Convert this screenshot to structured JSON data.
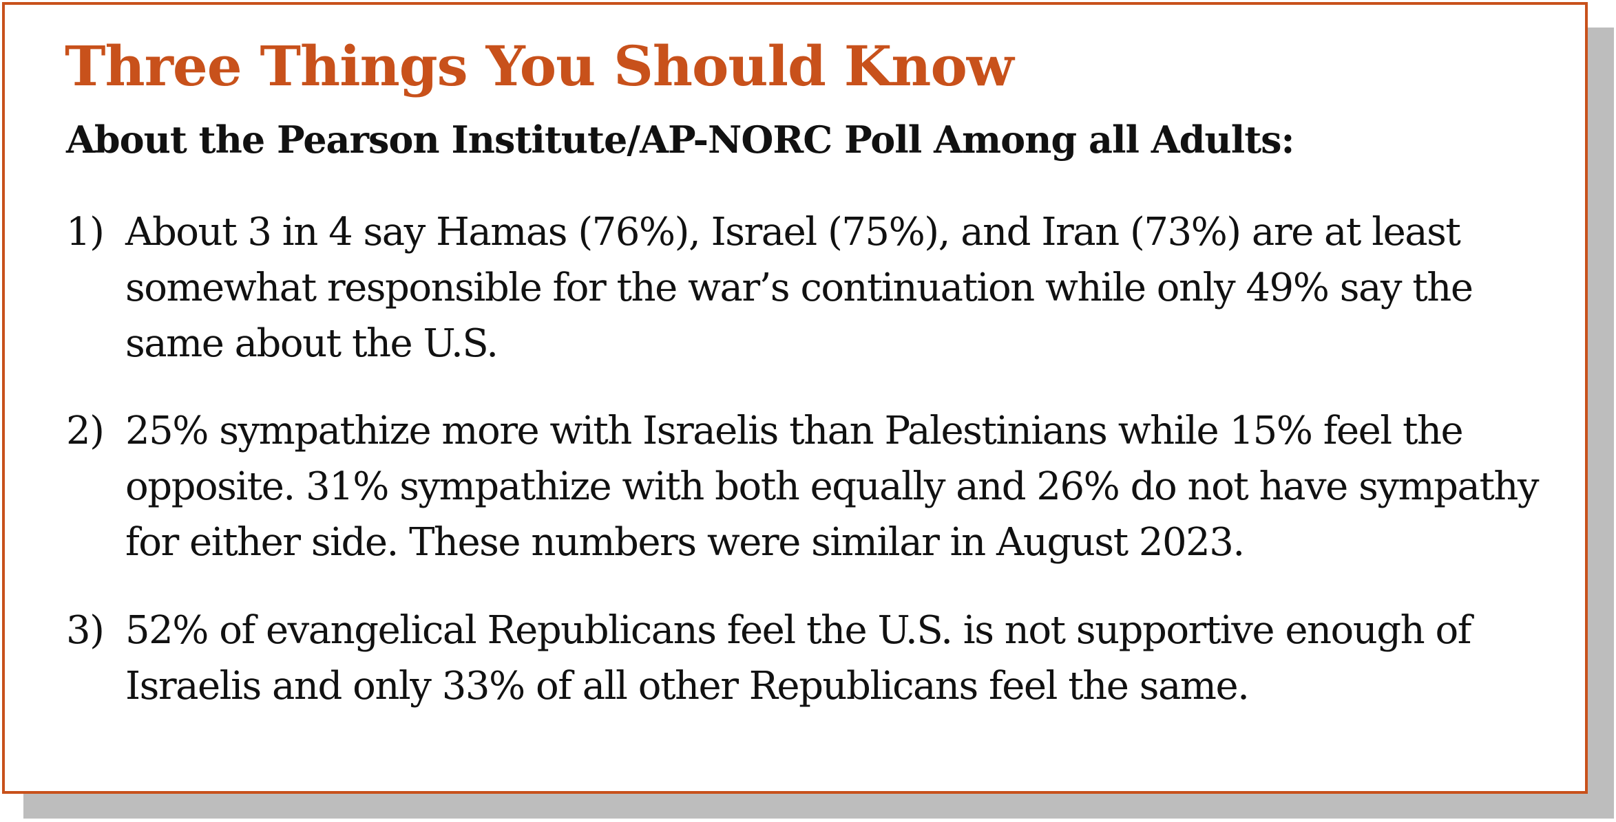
{
  "heading": {
    "title": "Three Things You Should Know",
    "subtitle": "About the Pearson Institute/AP-NORC Poll Among all Adults:"
  },
  "items": [
    {
      "number": "1)",
      "text": "About 3 in 4 say Hamas (76%), Israel (75%), and Iran (73%) are at least somewhat responsible for the war’s continuation while only 49% say the same about the U.S."
    },
    {
      "number": "2)",
      "text": "25% sympathize more with Israelis than Palestinians while 15% feel the opposite. 31% sympathize with both equally and 26% do not have sympathy for either side. These numbers were similar in August 2023."
    },
    {
      "number": "3)",
      "text": "52% of evangelical Republicans feel the U.S. is not supportive enough of Israelis and only 33% of all other Republicans feel the same."
    }
  ],
  "colors": {
    "accent": "#c8511b",
    "text": "#111111",
    "shadow": "#bdbdbd"
  }
}
